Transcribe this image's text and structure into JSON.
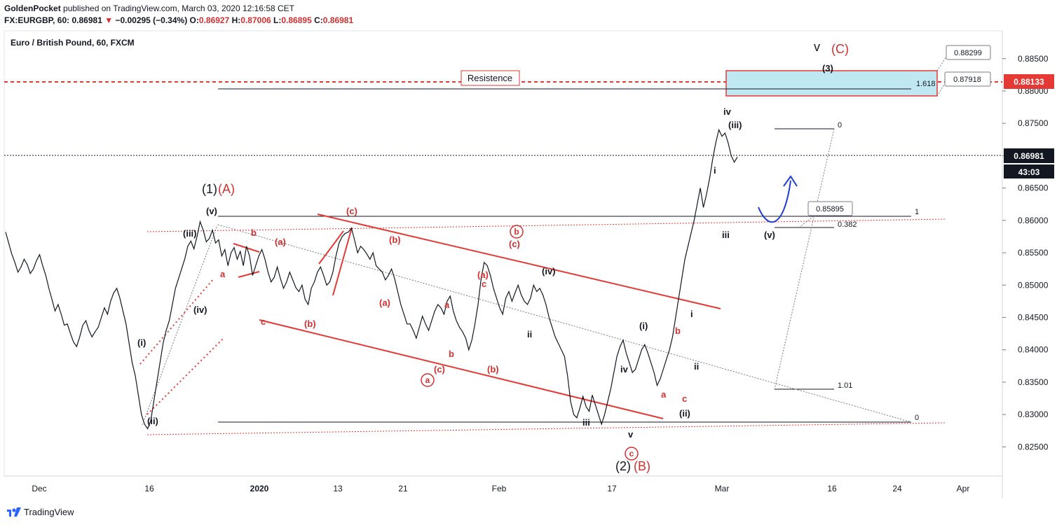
{
  "header": {
    "author": "GoldenPocket",
    "published_text": "published on TradingView.com, March 03, 2020 12:16:58 CET",
    "symbol": "FX:EURGBP, 60",
    "last": "0.86981",
    "change": "−0.00295 (−0.34%)",
    "o_label": "O:",
    "o_value": "0.86927",
    "h_label": "H:",
    "h_value": "0.87006",
    "l_label": "L:",
    "l_value": "0.86895",
    "c_label": "C:",
    "c_value": "0.86981"
  },
  "legend": "Euro / British Pound, 60, FXCM",
  "footer": {
    "brand": "TradingView"
  },
  "colors": {
    "red": "#d32f2f",
    "blue": "#1f3bd6",
    "zone": "#bfe8f2",
    "text": "#131722"
  },
  "chart_data": {
    "type": "line",
    "ylim": [
      0.8205,
      0.8893
    ],
    "price_ticks": [
      "0.88500",
      "0.88000",
      "0.87500",
      "0.87000",
      "0.86500",
      "0.86000",
      "0.85500",
      "0.85000",
      "0.84500",
      "0.84000",
      "0.83500",
      "0.83000",
      "0.82500"
    ],
    "price_tick_values": [
      0.885,
      0.88,
      0.875,
      0.87,
      0.865,
      0.86,
      0.855,
      0.85,
      0.845,
      0.84,
      0.835,
      0.83,
      0.825
    ],
    "time_ticks": [
      {
        "label": "Dec",
        "bold": false
      },
      {
        "label": "16",
        "bold": false
      },
      {
        "label": "2020",
        "bold": true
      },
      {
        "label": "13",
        "bold": false
      },
      {
        "label": "21",
        "bold": false
      },
      {
        "label": "Feb",
        "bold": false
      },
      {
        "label": "17",
        "bold": false
      },
      {
        "label": "Mar",
        "bold": false
      },
      {
        "label": "16",
        "bold": false
      },
      {
        "label": "24",
        "bold": false
      },
      {
        "label": "Apr",
        "bold": false
      }
    ],
    "current_price": "0.86981",
    "countdown": "43:03",
    "resistance_price": "0.88133",
    "resistance_label": "Resistence",
    "zone_top": "0.88299",
    "zone_bottom": "0.87918",
    "target_label": "0.85895",
    "fib_labels": [
      "1.618",
      "0",
      "1",
      "0.382",
      "1.01",
      "0"
    ],
    "series": [
      {
        "values": [
          0.8582,
          0.8565,
          0.8548,
          0.8535,
          0.852,
          0.8528,
          0.854,
          0.8532,
          0.8518,
          0.8525,
          0.8538,
          0.8547,
          0.853,
          0.8515,
          0.8495,
          0.8478,
          0.846,
          0.847,
          0.8455,
          0.8438,
          0.844,
          0.8425,
          0.8412,
          0.8405,
          0.842,
          0.8438,
          0.8445,
          0.843,
          0.842,
          0.8428,
          0.8435,
          0.845,
          0.8465,
          0.8455,
          0.8475,
          0.8488,
          0.8495,
          0.848,
          0.846,
          0.844,
          0.841,
          0.838,
          0.836,
          0.833,
          0.83,
          0.8285,
          0.8278,
          0.829,
          0.832,
          0.835,
          0.838,
          0.841,
          0.843,
          0.8445,
          0.847,
          0.8495,
          0.851,
          0.8525,
          0.854,
          0.856,
          0.8568,
          0.8556,
          0.8575,
          0.8598,
          0.8585,
          0.8567,
          0.8572,
          0.8585,
          0.8565,
          0.857,
          0.8545,
          0.8555,
          0.853,
          0.855,
          0.8558,
          0.854,
          0.8552,
          0.853,
          0.856,
          0.8545,
          0.8515,
          0.853,
          0.8545,
          0.8555,
          0.854,
          0.852,
          0.8505,
          0.8512,
          0.8528,
          0.851,
          0.8495,
          0.8505,
          0.852,
          0.8508,
          0.8496,
          0.849,
          0.85,
          0.8478,
          0.847,
          0.8495,
          0.8505,
          0.852,
          0.8528,
          0.8515,
          0.85,
          0.8505,
          0.852,
          0.8545,
          0.8565,
          0.8575,
          0.858,
          0.8582,
          0.8588,
          0.857,
          0.855,
          0.856,
          0.8555,
          0.8548,
          0.854,
          0.855,
          0.853,
          0.8525,
          0.852,
          0.8508,
          0.8515,
          0.8525,
          0.851,
          0.849,
          0.847,
          0.8455,
          0.844,
          0.844,
          0.843,
          0.8418,
          0.8435,
          0.8452,
          0.844,
          0.843,
          0.8445,
          0.846,
          0.847,
          0.8465,
          0.8455,
          0.8475,
          0.8483,
          0.846,
          0.8445,
          0.8435,
          0.8428,
          0.8418,
          0.84,
          0.8415,
          0.844,
          0.847,
          0.851,
          0.8535,
          0.853,
          0.8515,
          0.8495,
          0.848,
          0.8465,
          0.8455,
          0.848,
          0.849,
          0.8475,
          0.8488,
          0.85,
          0.8485,
          0.8475,
          0.847,
          0.848,
          0.85,
          0.849,
          0.8495,
          0.8485,
          0.847,
          0.845,
          0.8435,
          0.842,
          0.841,
          0.84,
          0.839,
          0.836,
          0.832,
          0.83,
          0.8295,
          0.831,
          0.8328,
          0.8312,
          0.8305,
          0.833,
          0.8315,
          0.83,
          0.8285,
          0.83,
          0.832,
          0.834,
          0.8365,
          0.839,
          0.8405,
          0.8415,
          0.8395,
          0.838,
          0.8365,
          0.837,
          0.8385,
          0.84,
          0.8408,
          0.8395,
          0.838,
          0.8365,
          0.8345,
          0.8355,
          0.837,
          0.8385,
          0.84,
          0.842,
          0.845,
          0.848,
          0.851,
          0.854,
          0.856,
          0.858,
          0.86,
          0.8625,
          0.865,
          0.862,
          0.864,
          0.8665,
          0.8695,
          0.872,
          0.874,
          0.873,
          0.8735,
          0.872,
          0.87,
          0.869,
          0.8698
        ]
      }
    ],
    "annotations": {
      "black": [
        "(1)",
        "(v)",
        "(iii)",
        "(iv)",
        "(i)",
        "(ii)",
        "(2)",
        "iii",
        "v",
        "iv",
        "(i)",
        "(ii)",
        "i",
        "ii",
        "i",
        "iii",
        "iv",
        "(iii)",
        "v",
        "(3)",
        "(v)",
        "(iv)",
        "ii",
        "i"
      ],
      "red": [
        "(A)",
        "(B)",
        "(C)",
        "(c)",
        "(a)",
        "(b)",
        "(a)",
        "(b)",
        "(b)",
        "(c)",
        "(a)",
        "(b)",
        "(c)",
        "b",
        "a",
        "c",
        "a",
        "b",
        "b",
        "c",
        "a",
        "b",
        "c",
        "c",
        "b"
      ]
    }
  }
}
